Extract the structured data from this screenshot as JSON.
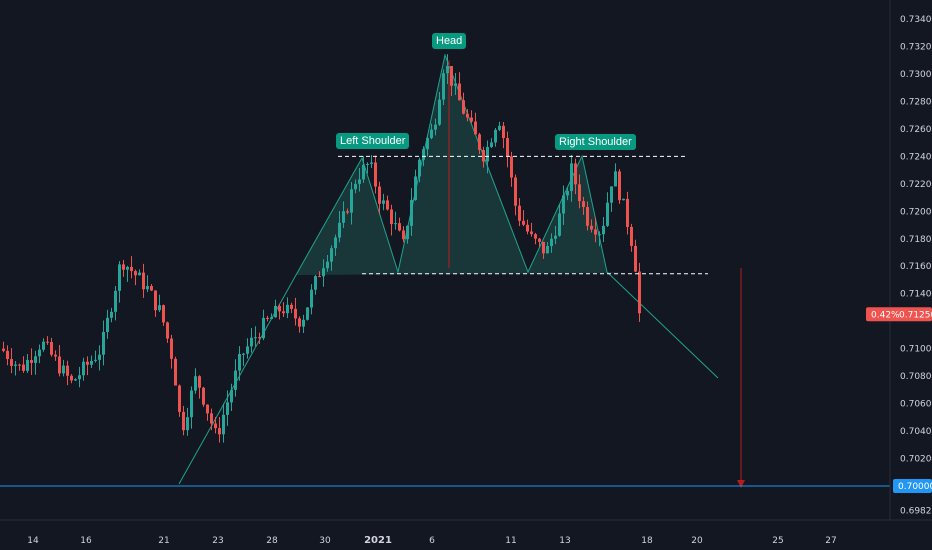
{
  "chart_data": {
    "type": "candlestick",
    "y_axis": {
      "ticks": [
        "0.73400",
        "0.73200",
        "0.73000",
        "0.72800",
        "0.72600",
        "0.72400",
        "0.72200",
        "0.72000",
        "0.71800",
        "0.71600",
        "0.71400",
        "0.71250",
        "0.71000",
        "0.70800",
        "0.70600",
        "0.70400",
        "0.70200",
        "0.70000",
        "0.69820"
      ],
      "tick_values": [
        0.734,
        0.732,
        0.73,
        0.728,
        0.726,
        0.724,
        0.722,
        0.72,
        0.718,
        0.716,
        0.714,
        0.7125,
        0.71,
        0.708,
        0.706,
        0.704,
        0.702,
        0.7,
        0.6982
      ],
      "range": [
        0.6975,
        0.7355
      ]
    },
    "x_axis": {
      "ticks": [
        "14",
        "16",
        "21",
        "23",
        "28",
        "30",
        "2021",
        "6",
        "11",
        "13",
        "18",
        "20",
        "25",
        "27"
      ]
    },
    "annotations": {
      "head": "Head",
      "left_shoulder": "Left Shoulder",
      "right_shoulder": "Right Shoulder"
    },
    "levels": {
      "neckline_top": 0.724,
      "neckline_bottom": 0.71545,
      "target": 0.7
    },
    "current_price": {
      "change": "0.42%",
      "price": "0.71250"
    },
    "target_label": "0.70000",
    "colors": {
      "up": "#26a69a",
      "down": "#ef5350",
      "pattern_fill": "#1e4d4a",
      "pattern_line": "#20a38e",
      "target_line": "#2196f3",
      "background": "#131722"
    }
  }
}
